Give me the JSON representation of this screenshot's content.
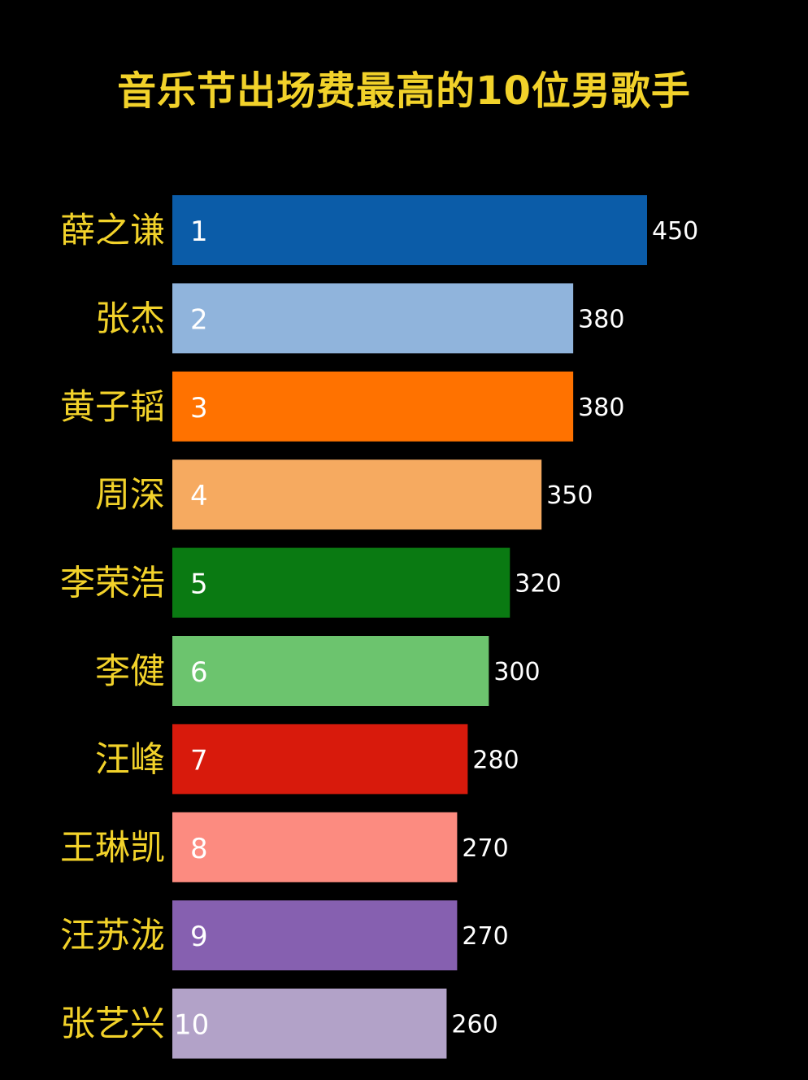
{
  "chart_data": {
    "type": "bar",
    "orientation": "horizontal",
    "title": "音乐节出场费最高的10位男歌手",
    "categories": [
      "薛之谦",
      "张杰",
      "黄子韬",
      "周深",
      "李荣浩",
      "李健",
      "汪峰",
      "王琳凯",
      "汪苏泷",
      "张艺兴"
    ],
    "ranks": [
      "1",
      "2",
      "3",
      "4",
      "5",
      "6",
      "7",
      "8",
      "9",
      "10"
    ],
    "values": [
      450,
      380,
      380,
      350,
      320,
      300,
      280,
      270,
      270,
      260
    ],
    "colors": [
      "#0b5ca8",
      "#90b4dc",
      "#ff7200",
      "#f6aa60",
      "#0a7a12",
      "#6cc46e",
      "#d81a0c",
      "#fc8b80",
      "#8660b0",
      "#b2a2c8"
    ],
    "label_color": "#f2d22a",
    "background": "#000000",
    "xlim": [
      0,
      450
    ],
    "grid": false,
    "legend": "none"
  }
}
